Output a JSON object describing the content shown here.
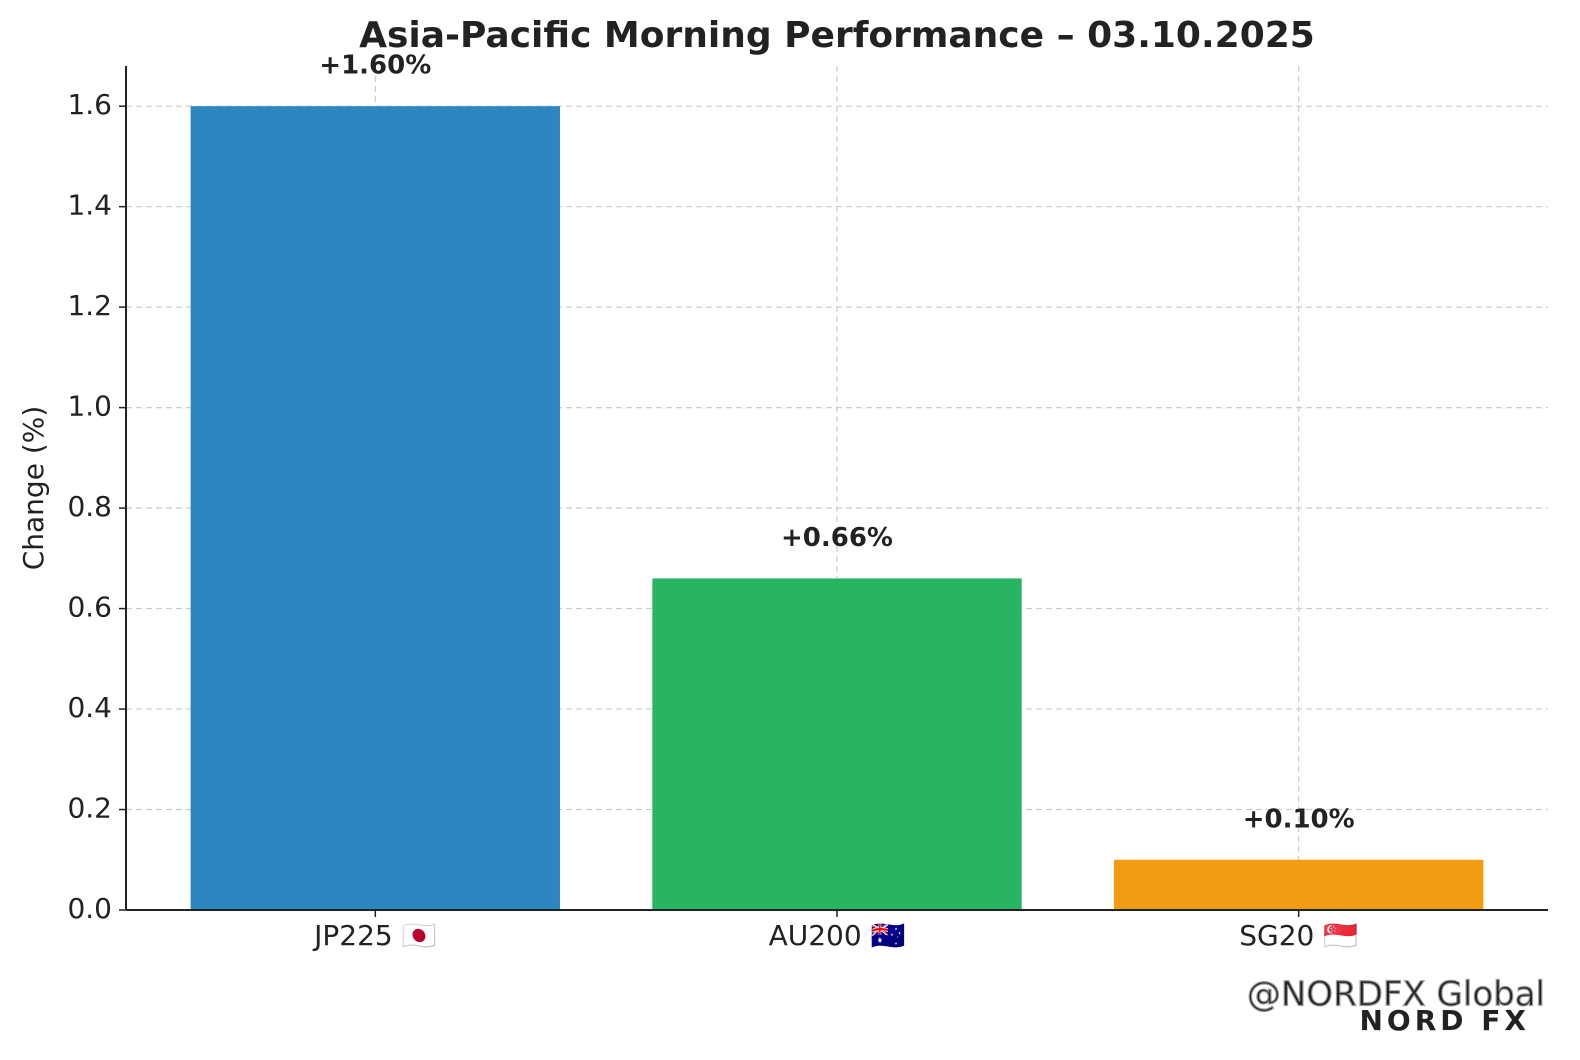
{
  "chart_data": {
    "type": "bar",
    "title": "Asia-Pacific Morning Performance – 03.10.2025",
    "y_label": "Change (%)",
    "categories": [
      "JP225 🇯🇵",
      "AU200 🇦🇺",
      "SG20 🇸🇬"
    ],
    "values": [
      1.6,
      0.66,
      0.1
    ],
    "value_labels": [
      "+1.60%",
      "+0.66%",
      "+0.10%"
    ],
    "colors": [
      "#2e86c1",
      "#28b463",
      "#f39c12"
    ],
    "ylim": [
      0,
      1.68
    ],
    "yticks": [
      {
        "value": 0,
        "label": "0.0"
      },
      0.2,
      0.4,
      0.6,
      0.8,
      {
        "value": 1,
        "label": "1.0"
      },
      1.2,
      1.4,
      1.6
    ],
    "grid": true,
    "watermark": "@NORDFX Global",
    "logo": "NORD FX"
  }
}
